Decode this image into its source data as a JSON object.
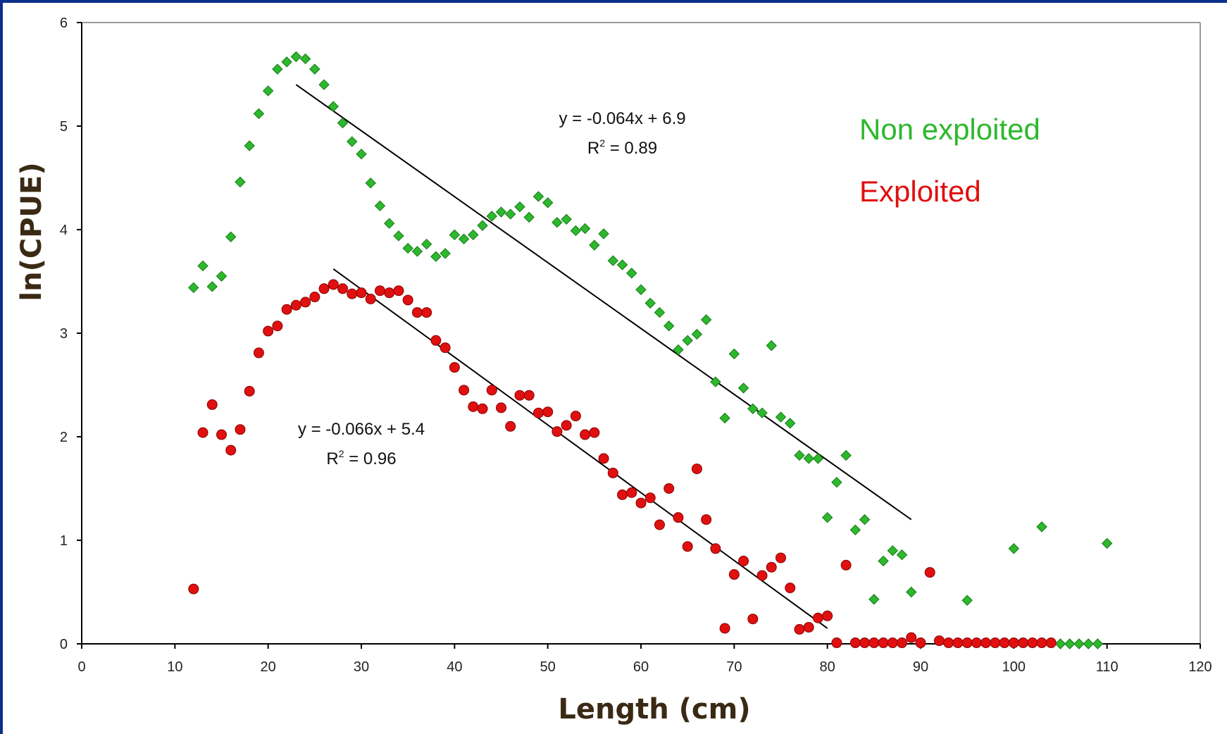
{
  "chart_data": {
    "type": "scatter",
    "xlabel": "Length (cm)",
    "ylabel": "ln(CPUE)",
    "xlim": [
      0,
      120
    ],
    "ylim": [
      0,
      6
    ],
    "x_ticks": [
      0,
      10,
      20,
      30,
      40,
      50,
      60,
      70,
      80,
      90,
      100,
      110,
      120
    ],
    "y_ticks": [
      0,
      1,
      2,
      3,
      4,
      5,
      6
    ],
    "grid": false,
    "legend_position": "top-right",
    "series": [
      {
        "name": "Non exploited",
        "color": "#2db82d",
        "marker": "diamond",
        "points": [
          [
            12,
            3.44
          ],
          [
            13,
            3.65
          ],
          [
            14,
            3.45
          ],
          [
            15,
            3.55
          ],
          [
            16,
            3.93
          ],
          [
            17,
            4.46
          ],
          [
            18,
            4.81
          ],
          [
            19,
            5.12
          ],
          [
            20,
            5.34
          ],
          [
            21,
            5.55
          ],
          [
            22,
            5.62
          ],
          [
            23,
            5.67
          ],
          [
            24,
            5.65
          ],
          [
            25,
            5.55
          ],
          [
            26,
            5.4
          ],
          [
            27,
            5.19
          ],
          [
            28,
            5.03
          ],
          [
            29,
            4.85
          ],
          [
            30,
            4.73
          ],
          [
            31,
            4.45
          ],
          [
            32,
            4.23
          ],
          [
            33,
            4.06
          ],
          [
            34,
            3.94
          ],
          [
            35,
            3.82
          ],
          [
            36,
            3.79
          ],
          [
            37,
            3.86
          ],
          [
            38,
            3.74
          ],
          [
            39,
            3.77
          ],
          [
            40,
            3.95
          ],
          [
            41,
            3.91
          ],
          [
            42,
            3.95
          ],
          [
            43,
            4.04
          ],
          [
            44,
            4.13
          ],
          [
            45,
            4.17
          ],
          [
            46,
            4.15
          ],
          [
            47,
            4.22
          ],
          [
            48,
            4.12
          ],
          [
            49,
            4.32
          ],
          [
            50,
            4.26
          ],
          [
            51,
            4.07
          ],
          [
            52,
            4.1
          ],
          [
            53,
            3.99
          ],
          [
            54,
            4.01
          ],
          [
            55,
            3.85
          ],
          [
            56,
            3.96
          ],
          [
            57,
            3.7
          ],
          [
            58,
            3.66
          ],
          [
            59,
            3.58
          ],
          [
            60,
            3.42
          ],
          [
            61,
            3.29
          ],
          [
            62,
            3.2
          ],
          [
            63,
            3.07
          ],
          [
            64,
            2.84
          ],
          [
            65,
            2.93
          ],
          [
            66,
            2.99
          ],
          [
            67,
            3.13
          ],
          [
            68,
            2.53
          ],
          [
            69,
            2.18
          ],
          [
            70,
            2.8
          ],
          [
            71,
            2.47
          ],
          [
            72,
            2.27
          ],
          [
            73,
            2.23
          ],
          [
            74,
            2.88
          ],
          [
            75,
            2.19
          ],
          [
            76,
            2.13
          ],
          [
            77,
            1.82
          ],
          [
            78,
            1.79
          ],
          [
            79,
            1.79
          ],
          [
            80,
            1.22
          ],
          [
            81,
            1.56
          ],
          [
            82,
            1.82
          ],
          [
            83,
            1.1
          ],
          [
            84,
            1.2
          ],
          [
            85,
            0.43
          ],
          [
            86,
            0.8
          ],
          [
            87,
            0.9
          ],
          [
            88,
            0.86
          ],
          [
            89,
            0.5
          ],
          [
            90,
            0.0
          ],
          [
            95,
            0.42
          ],
          [
            100,
            0.92
          ],
          [
            103,
            1.13
          ],
          [
            105,
            0.0
          ],
          [
            106,
            0.0
          ],
          [
            107,
            0.0
          ],
          [
            108,
            0.0
          ],
          [
            109,
            0.0
          ],
          [
            110,
            0.97
          ]
        ]
      },
      {
        "name": "Exploited",
        "color": "#e01010",
        "marker": "circle",
        "points": [
          [
            12,
            0.53
          ],
          [
            13,
            2.04
          ],
          [
            14,
            2.31
          ],
          [
            15,
            2.02
          ],
          [
            16,
            1.87
          ],
          [
            17,
            2.07
          ],
          [
            18,
            2.44
          ],
          [
            19,
            2.81
          ],
          [
            20,
            3.02
          ],
          [
            21,
            3.07
          ],
          [
            22,
            3.23
          ],
          [
            23,
            3.27
          ],
          [
            24,
            3.3
          ],
          [
            25,
            3.35
          ],
          [
            26,
            3.43
          ],
          [
            27,
            3.47
          ],
          [
            28,
            3.43
          ],
          [
            29,
            3.38
          ],
          [
            30,
            3.39
          ],
          [
            31,
            3.33
          ],
          [
            32,
            3.41
          ],
          [
            33,
            3.39
          ],
          [
            34,
            3.41
          ],
          [
            35,
            3.32
          ],
          [
            36,
            3.2
          ],
          [
            37,
            3.2
          ],
          [
            38,
            2.93
          ],
          [
            39,
            2.86
          ],
          [
            40,
            2.67
          ],
          [
            41,
            2.45
          ],
          [
            42,
            2.29
          ],
          [
            43,
            2.27
          ],
          [
            44,
            2.45
          ],
          [
            45,
            2.28
          ],
          [
            46,
            2.1
          ],
          [
            47,
            2.4
          ],
          [
            48,
            2.4
          ],
          [
            49,
            2.23
          ],
          [
            50,
            2.24
          ],
          [
            51,
            2.05
          ],
          [
            52,
            2.11
          ],
          [
            53,
            2.2
          ],
          [
            54,
            2.02
          ],
          [
            55,
            2.04
          ],
          [
            56,
            1.79
          ],
          [
            57,
            1.65
          ],
          [
            58,
            1.44
          ],
          [
            59,
            1.46
          ],
          [
            60,
            1.36
          ],
          [
            61,
            1.41
          ],
          [
            62,
            1.15
          ],
          [
            63,
            1.5
          ],
          [
            64,
            1.22
          ],
          [
            65,
            0.94
          ],
          [
            66,
            1.69
          ],
          [
            67,
            1.2
          ],
          [
            68,
            0.92
          ],
          [
            69,
            0.15
          ],
          [
            70,
            0.67
          ],
          [
            71,
            0.8
          ],
          [
            72,
            0.24
          ],
          [
            73,
            0.66
          ],
          [
            74,
            0.74
          ],
          [
            75,
            0.83
          ],
          [
            76,
            0.54
          ],
          [
            77,
            0.14
          ],
          [
            78,
            0.16
          ],
          [
            79,
            0.25
          ],
          [
            80,
            0.27
          ],
          [
            81,
            0.01
          ],
          [
            82,
            0.76
          ],
          [
            83,
            0.01
          ],
          [
            84,
            0.01
          ],
          [
            85,
            0.01
          ],
          [
            86,
            0.01
          ],
          [
            87,
            0.01
          ],
          [
            88,
            0.01
          ],
          [
            89,
            0.06
          ],
          [
            90,
            0.01
          ],
          [
            91,
            0.69
          ],
          [
            92,
            0.03
          ],
          [
            93,
            0.01
          ],
          [
            94,
            0.01
          ],
          [
            95,
            0.01
          ],
          [
            96,
            0.01
          ],
          [
            97,
            0.01
          ],
          [
            98,
            0.01
          ],
          [
            99,
            0.01
          ],
          [
            100,
            0.01
          ],
          [
            101,
            0.01
          ],
          [
            102,
            0.01
          ],
          [
            103,
            0.01
          ],
          [
            104,
            0.01
          ]
        ]
      }
    ],
    "trendlines": [
      {
        "series": "Non exploited",
        "x": [
          23,
          89
        ],
        "y": [
          5.4,
          1.2
        ]
      },
      {
        "series": "Exploited",
        "x": [
          27,
          80
        ],
        "y": [
          3.62,
          0.15
        ]
      }
    ],
    "annotations": [
      {
        "label": "y = -0.064x + 6.9",
        "r2_prefix": "R",
        "r2_sup": "2",
        "r2_value": " = 0.89",
        "x": 58,
        "y": 5.02
      },
      {
        "label": "y = -0.066x + 5.4",
        "r2_prefix": "R",
        "r2_sup": "2",
        "r2_value": " = 0.96",
        "x": 30,
        "y": 2.02
      }
    ],
    "legend": [
      {
        "label": "Non exploited",
        "color": "#2db82d"
      },
      {
        "label": "Exploited",
        "color": "#e01010"
      }
    ]
  }
}
